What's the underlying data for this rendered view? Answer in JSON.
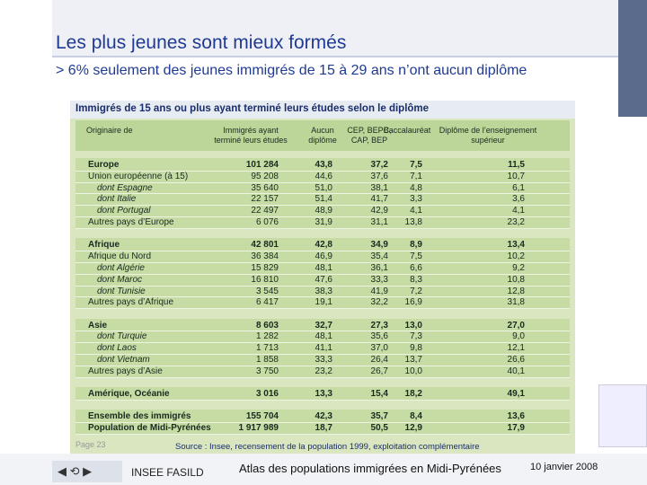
{
  "header": {
    "title": "Les plus jeunes sont mieux formés",
    "subtitle": "6% seulement des jeunes immigrés de 15 à 29 ans n’ont aucun diplôme"
  },
  "table": {
    "title": "Immigrés de 15 ans ou plus ayant terminé leurs études selon le diplôme",
    "columns": [
      "Originaire de",
      "Immigrés ayant terminé leurs études",
      "Aucun diplôme",
      "CEP, BEPC, CAP, BEP",
      "Baccalauréat",
      "Diplôme de l’enseignement supérieur"
    ],
    "groups": [
      {
        "rows": [
          [
            "Europe",
            "101 284",
            "43,8",
            "37,2",
            "7,5",
            "11,5"
          ],
          [
            "Union européenne (à 15)",
            "95 208",
            "44,6",
            "37,6",
            "7,1",
            "10,7"
          ],
          [
            "dont Espagne",
            "35 640",
            "51,0",
            "38,1",
            "4,8",
            "6,1"
          ],
          [
            "dont Italie",
            "22 157",
            "51,4",
            "41,7",
            "3,3",
            "3,6"
          ],
          [
            "dont Portugal",
            "22 497",
            "48,9",
            "42,9",
            "4,1",
            "4,1"
          ],
          [
            "Autres pays d’Europe",
            "6 076",
            "31,9",
            "31,1",
            "13,8",
            "23,2"
          ]
        ]
      },
      {
        "rows": [
          [
            "Afrique",
            "42 801",
            "42,8",
            "34,9",
            "8,9",
            "13,4"
          ],
          [
            "Afrique du Nord",
            "36 384",
            "46,9",
            "35,4",
            "7,5",
            "10,2"
          ],
          [
            "dont Algérie",
            "15 829",
            "48,1",
            "36,1",
            "6,6",
            "9,2"
          ],
          [
            "dont Maroc",
            "16 810",
            "47,6",
            "33,3",
            "8,3",
            "10,8"
          ],
          [
            "dont Tunisie",
            "3 545",
            "38,3",
            "41,9",
            "7,2",
            "12,8"
          ],
          [
            "Autres pays d’Afrique",
            "6 417",
            "19,1",
            "32,2",
            "16,9",
            "31,8"
          ]
        ]
      },
      {
        "rows": [
          [
            "Asie",
            "8 603",
            "32,7",
            "27,3",
            "13,0",
            "27,0"
          ],
          [
            "dont Turquie",
            "1 282",
            "48,1",
            "35,6",
            "7,3",
            "9,0"
          ],
          [
            "dont Laos",
            "1 713",
            "41,1",
            "37,0",
            "9,8",
            "12,1"
          ],
          [
            "dont Vietnam",
            "1 858",
            "33,3",
            "26,4",
            "13,7",
            "26,6"
          ],
          [
            "Autres pays d’Asie",
            "3 750",
            "23,2",
            "26,7",
            "10,0",
            "40,1"
          ]
        ]
      },
      {
        "rows": [
          [
            "Amérique, Océanie",
            "3 016",
            "13,3",
            "15,4",
            "18,2",
            "49,1"
          ]
        ]
      },
      {
        "rows": [
          [
            "Ensemble des immigrés",
            "155 704",
            "42,3",
            "35,7",
            "8,4",
            "13,6"
          ],
          [
            "Population de Midi-Pyrénées",
            "1 917 989",
            "18,7",
            "50,5",
            "12,9",
            "17,9"
          ]
        ]
      }
    ],
    "source": "Source : Insee, recensement de la population 1999, exploitation complémentaire"
  },
  "footer": {
    "page": "Page 23",
    "org": "INSEE FASILD",
    "atlas": "Atlas des populations immigrées en Midi-Pyrénées",
    "date": "10 janvier 2008"
  }
}
